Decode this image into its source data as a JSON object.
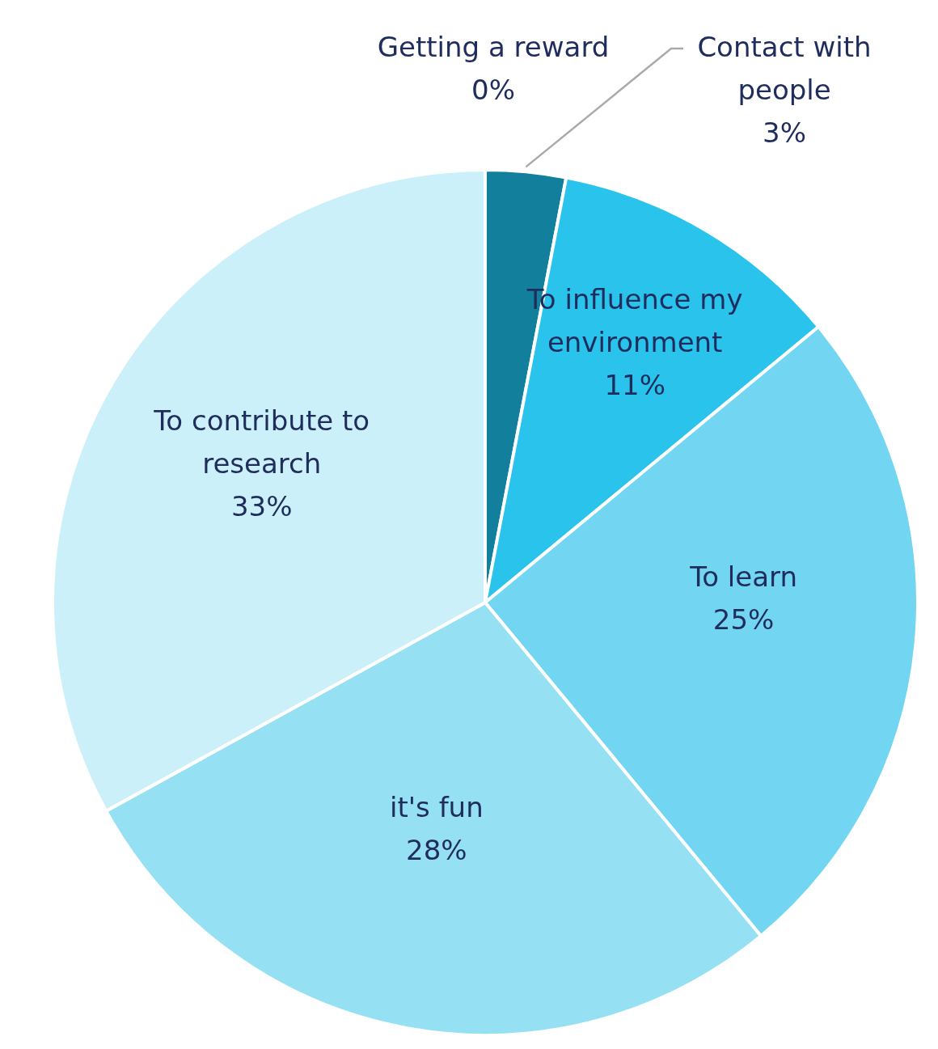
{
  "chart_data": {
    "type": "pie",
    "categories": [
      "Getting a reward",
      "Contact with people",
      "To influence my environment",
      "To learn",
      "it's fun",
      "To contribute to research"
    ],
    "values": [
      0,
      3,
      11,
      25,
      28,
      33
    ],
    "value_labels": [
      "0%",
      "3%",
      "11%",
      "25%",
      "28%",
      "33%"
    ],
    "colors": [
      "#0b5d75",
      "#127f9d",
      "#29c3ec",
      "#72d5f2",
      "#96e0f3",
      "#ccf0f9"
    ]
  }
}
